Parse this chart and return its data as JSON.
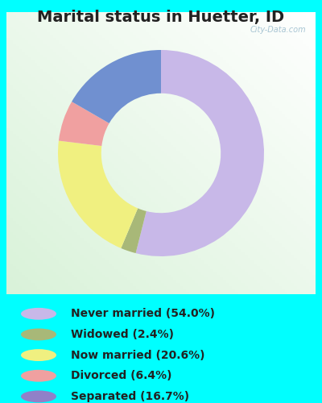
{
  "title": "Marital status in Huetter, ID",
  "title_fontsize": 14,
  "title_fontweight": "bold",
  "background_cyan": "#00FFFF",
  "watermark": "City-Data.com",
  "categories": [
    "Never married",
    "Widowed",
    "Now married",
    "Divorced",
    "Separated"
  ],
  "values": [
    54.0,
    2.4,
    20.6,
    6.4,
    16.7
  ],
  "pie_colors": [
    "#c8b8e8",
    "#a8b878",
    "#f0f080",
    "#f0a0a0",
    "#7090d0"
  ],
  "legend_labels": [
    "Never married (54.0%)",
    "Widowed (2.4%)",
    "Now married (20.6%)",
    "Divorced (6.4%)",
    "Separated (16.7%)"
  ],
  "legend_colors": [
    "#c8b8e8",
    "#a8b878",
    "#f0f080",
    "#f0a0a0",
    "#9080c8"
  ],
  "startangle": 90,
  "fig_width": 4.0,
  "fig_height": 5.0,
  "dpi": 100
}
